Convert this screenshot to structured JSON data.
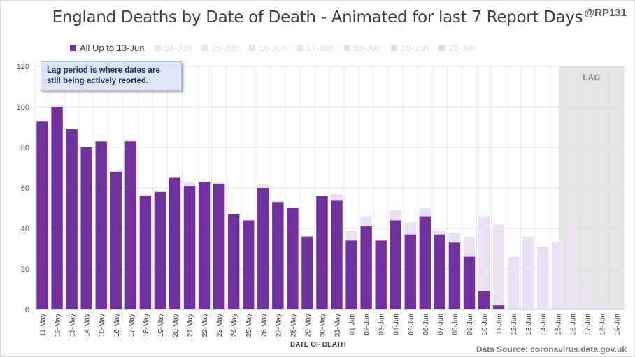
{
  "title": "England Deaths by Date of Death - Animated for last 7 Report Days",
  "handle": "@RP131",
  "note": "Lag period is where dates are still being actively  reorted.",
  "source": "Data Source: coronavirus.data.gov.uk",
  "lag_label": "LAG",
  "chart_data": {
    "type": "bar",
    "stacked": true,
    "xlabel": "DATE OF DEATH",
    "ylim": [
      0,
      120
    ],
    "yticks": [
      0,
      20,
      40,
      60,
      80,
      100,
      120
    ],
    "grid": true,
    "legend_position": "top",
    "lag_start": "16-Jun",
    "categories": [
      "11-May",
      "12-May",
      "13-May",
      "14-May",
      "15-May",
      "16-May",
      "17-May",
      "18-May",
      "19-May",
      "20-May",
      "21-May",
      "22-May",
      "23-May",
      "24-May",
      "25-May",
      "26-May",
      "27-May",
      "28-May",
      "29-May",
      "30-May",
      "31-May",
      "01-Jun",
      "02-Jun",
      "03-Jun",
      "04-Jun",
      "05-Jun",
      "06-Jun",
      "07-Jun",
      "08-Jun",
      "09-Jun",
      "10-Jun",
      "11-Jun",
      "12-Jun",
      "13-Jun",
      "14-Jun",
      "15-Jun",
      "16-Jun",
      "17-Jun",
      "18-Jun",
      "19-Jun"
    ],
    "totals": [
      93,
      101,
      89,
      80,
      83,
      68,
      84,
      57,
      58,
      65,
      63,
      63,
      63,
      47,
      44,
      62,
      54,
      50,
      36,
      56,
      57,
      39,
      46,
      34,
      49,
      43,
      50,
      39,
      38,
      36,
      46,
      42,
      26,
      36,
      31,
      33,
      44,
      11,
      2,
      0
    ],
    "series": [
      {
        "name": "All Up to 13-Jun",
        "color": "#7030a0",
        "values": [
          93,
          100,
          89,
          80,
          83,
          68,
          83,
          56,
          58,
          65,
          61,
          63,
          62,
          47,
          44,
          60,
          53,
          50,
          36,
          56,
          54,
          34,
          41,
          34,
          44,
          37,
          46,
          37,
          33,
          26,
          9,
          2,
          0,
          0,
          0,
          0,
          0,
          0,
          0,
          0
        ]
      },
      {
        "name": "14-Jun",
        "color": "#eee5f4"
      },
      {
        "name": "15-Jun",
        "color": "#ece2f3"
      },
      {
        "name": "16-Jun",
        "color": "#eae0f2"
      },
      {
        "name": "17-Jun",
        "color": "#e8ddf1"
      },
      {
        "name": "18-Jun",
        "color": "#e6dbf0"
      },
      {
        "name": "19-Jun",
        "color": "#e4d8ef"
      },
      {
        "name": "20-Jun",
        "color": "#e2d6ee"
      }
    ]
  }
}
